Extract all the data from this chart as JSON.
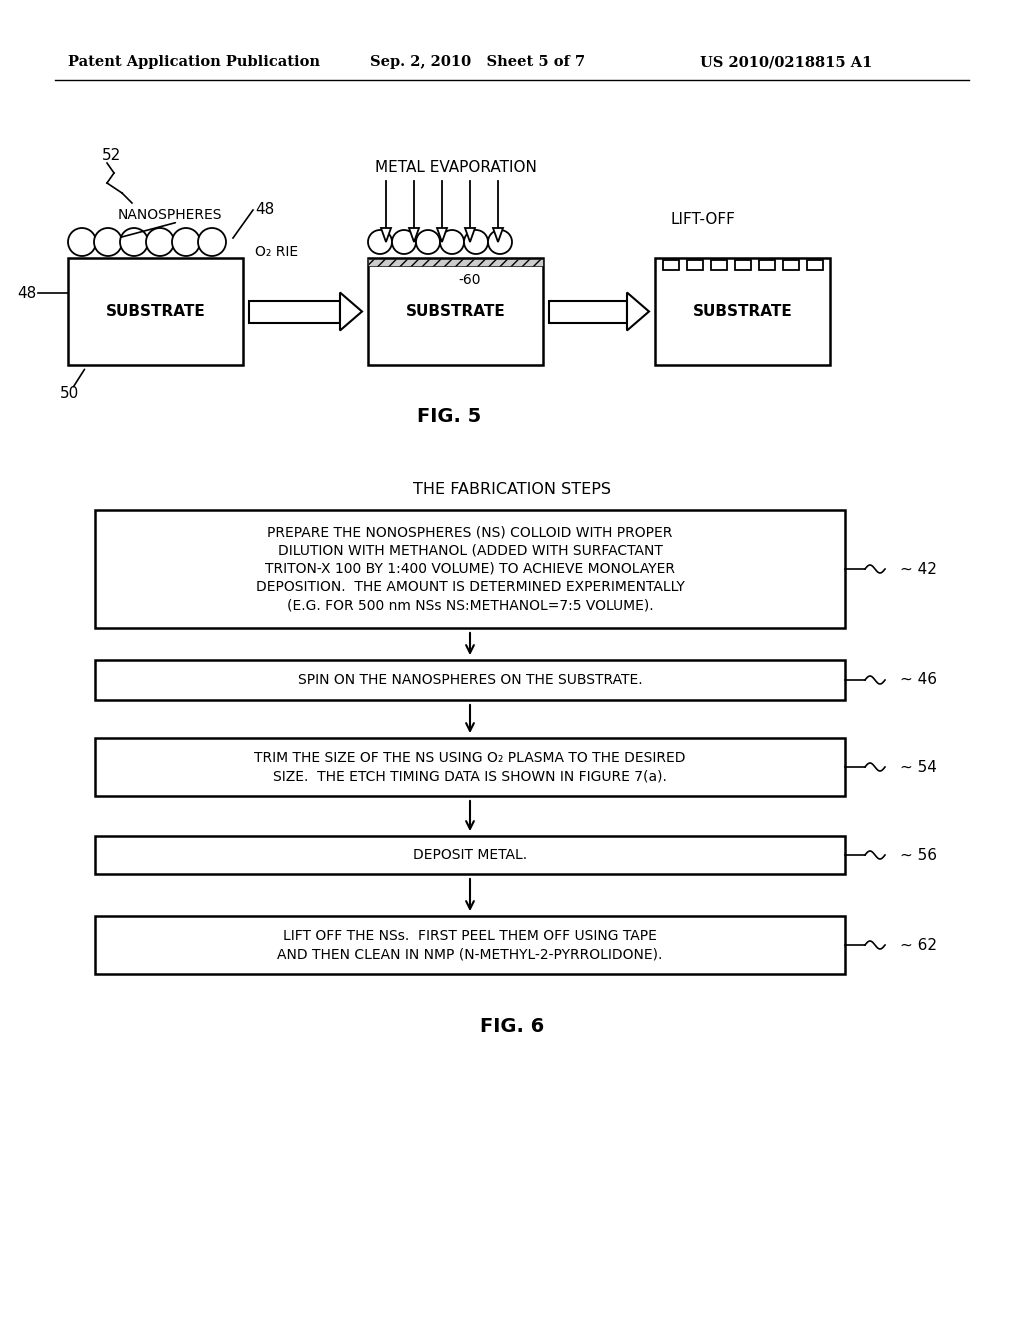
{
  "header_left": "Patent Application Publication",
  "header_mid": "Sep. 2, 2010   Sheet 5 of 7",
  "header_right": "US 2010/0218815 A1",
  "fig5_label": "FIG. 5",
  "fig6_label": "FIG. 6",
  "fig6_title": "THE FABRICATION STEPS",
  "background_color": "#ffffff",
  "text_color": "#000000"
}
